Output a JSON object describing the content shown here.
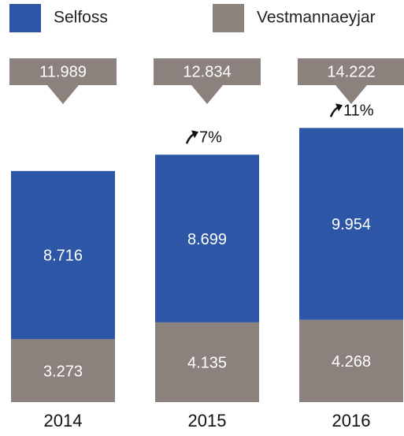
{
  "chart_data": {
    "type": "stacked-bar",
    "categories": [
      "2014",
      "2015",
      "2016"
    ],
    "series": [
      {
        "name": "Vestmannaeyjar",
        "color": "#8c827d",
        "values": [
          3.273,
          4.135,
          4.268
        ]
      },
      {
        "name": "Selfoss",
        "color": "#2e56a6",
        "values": [
          8.716,
          8.699,
          9.954
        ]
      }
    ],
    "legend_order": [
      1,
      0
    ],
    "totals": [
      11.989,
      12.834,
      14.222
    ],
    "growth": [
      null,
      7,
      11
    ],
    "growth_labels": [
      null,
      "7%",
      "11%"
    ]
  }
}
